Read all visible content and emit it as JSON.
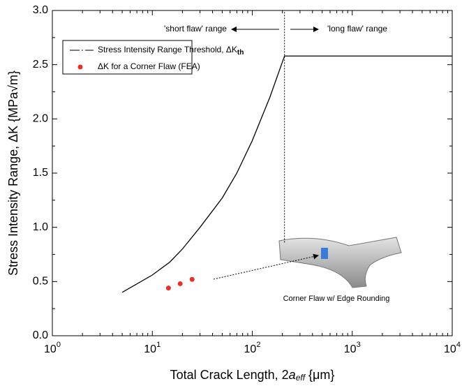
{
  "chart_data": {
    "type": "line",
    "x_label": [
      "Total Crack Length, 2",
      "a",
      "eff",
      " {μm}"
    ],
    "y_label": "Stress Intensity Range, ΔK {MPa√m}",
    "log_x": true,
    "xlim": [
      1,
      10000
    ],
    "xticks": [
      {
        "value": 1,
        "label": "10^0"
      },
      {
        "value": 10,
        "label": "10^1"
      },
      {
        "value": 100,
        "label": "10^2"
      },
      {
        "value": 1000,
        "label": "10^3"
      },
      {
        "value": 10000,
        "label": "10^4"
      }
    ],
    "ylim": [
      0,
      3
    ],
    "yticks": [
      {
        "value": 0,
        "label": "0.0"
      },
      {
        "value": 0.5,
        "label": "0.5"
      },
      {
        "value": 1,
        "label": "1.0"
      },
      {
        "value": 1.5,
        "label": "1.5"
      },
      {
        "value": 2,
        "label": "2.0"
      },
      {
        "value": 2.5,
        "label": "2.5"
      },
      {
        "value": 3,
        "label": "3.0"
      }
    ],
    "series": [
      {
        "name": "Stress Intensity Range Threshold, ΔK",
        "name_sub": "th",
        "kind": "line",
        "color": "#000000",
        "x": [
          5,
          10,
          15,
          20,
          30,
          50,
          70,
          100,
          150,
          210,
          10000
        ],
        "values": [
          0.4,
          0.56,
          0.68,
          0.8,
          1.0,
          1.27,
          1.5,
          1.8,
          2.2,
          2.58,
          2.58
        ]
      },
      {
        "name": "ΔK for a Corner Flaw (FEA)",
        "kind": "scatter",
        "color": "#e8312a",
        "x": [
          14.5,
          19,
          25
        ],
        "values": [
          0.44,
          0.48,
          0.52
        ]
      }
    ],
    "divider": {
      "x": 210,
      "ylim": [
        0.86,
        3.0
      ]
    },
    "annotations": {
      "short": "'short flaw' range",
      "long": "'long flaw' range",
      "inset": "Corner Flaw w/ Edge Rounding"
    }
  }
}
